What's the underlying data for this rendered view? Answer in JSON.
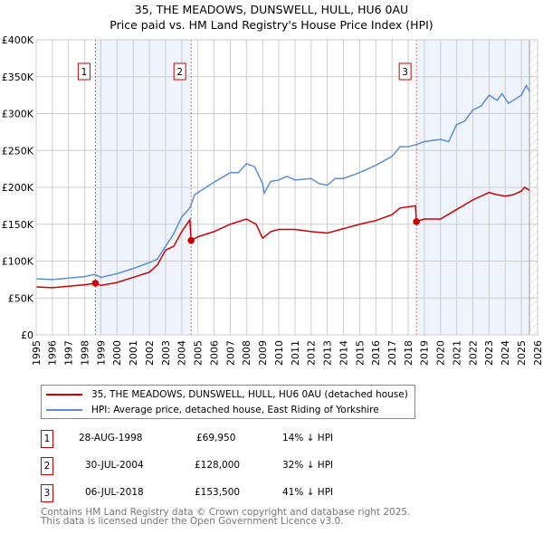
{
  "title": "35, THE MEADOWS, DUNSWELL, HULL, HU6 0AU",
  "subtitle": "Price paid vs. HM Land Registry's House Price Index (HPI)",
  "chart_data": {
    "type": "line",
    "ylim": [
      0,
      400000
    ],
    "xlim": [
      1995,
      2026
    ],
    "yticks": [
      {
        "v": 0,
        "l": "£0"
      },
      {
        "v": 50000,
        "l": "£50K"
      },
      {
        "v": 100000,
        "l": "£100K"
      },
      {
        "v": 150000,
        "l": "£150K"
      },
      {
        "v": 200000,
        "l": "£200K"
      },
      {
        "v": 250000,
        "l": "£250K"
      },
      {
        "v": 300000,
        "l": "£300K"
      },
      {
        "v": 350000,
        "l": "£350K"
      },
      {
        "v": 400000,
        "l": "£400K"
      }
    ],
    "xticks": [
      "1995",
      "1996",
      "1997",
      "1998",
      "1999",
      "2000",
      "2001",
      "2002",
      "2003",
      "2004",
      "2005",
      "2006",
      "2007",
      "2008",
      "2009",
      "2010",
      "2011",
      "2012",
      "2013",
      "2014",
      "2015",
      "2016",
      "2017",
      "2018",
      "2019",
      "2020",
      "2021",
      "2022",
      "2023",
      "2024",
      "2025",
      "2026"
    ],
    "shaded": [
      [
        1998.66,
        2004.58
      ],
      [
        2018.51,
        2025.5
      ]
    ],
    "forecast_start": 2025.5,
    "series": [
      {
        "name": "35, THE MEADOWS, DUNSWELL, HULL, HU6 0AU (detached house)",
        "color": "#cc0000",
        "x": [
          1995,
          1996,
          1997,
          1998,
          1998.66,
          1999,
          2000,
          2001,
          2002,
          2002.5,
          2003,
          2003.5,
          2004,
          2004.5,
          2004.58,
          2005,
          2006,
          2007,
          2008,
          2008.6,
          2009,
          2009.5,
          2010,
          2011,
          2012,
          2013,
          2014,
          2015,
          2016,
          2017,
          2017.5,
          2018.45,
          2018.51,
          2019,
          2020,
          2021,
          2022,
          2023,
          2023.5,
          2024,
          2024.5,
          2025,
          2025.2,
          2025.5
        ],
        "y": [
          65000,
          64000,
          66000,
          68000,
          69950,
          67000,
          71000,
          78000,
          85000,
          95000,
          115000,
          120000,
          140000,
          156000,
          128000,
          133000,
          140000,
          150000,
          157000,
          150000,
          131000,
          140000,
          143000,
          143000,
          140000,
          138000,
          144000,
          150000,
          155000,
          163000,
          172000,
          175000,
          153500,
          157000,
          157000,
          170000,
          183000,
          193000,
          190000,
          188000,
          190000,
          195000,
          200000,
          196000
        ]
      },
      {
        "name": "HPI: Average price, detached house, East Riding of Yorkshire",
        "color": "#5b8fd4",
        "x": [
          1995,
          1996,
          1997,
          1998,
          1998.6,
          1999,
          2000,
          2001,
          2002,
          2002.5,
          2003,
          2003.5,
          2004,
          2004.5,
          2004.8,
          2005.5,
          2006,
          2007,
          2007.5,
          2008,
          2008.5,
          2009,
          2009.1,
          2009.5,
          2010,
          2010.5,
          2011,
          2012,
          2012.5,
          2013,
          2013.5,
          2014,
          2015,
          2016,
          2017,
          2017.5,
          2018,
          2018.5,
          2019,
          2020,
          2020.5,
          2021,
          2021.5,
          2022,
          2022.5,
          2023,
          2023.5,
          2023.8,
          2024.2,
          2024.5,
          2025,
          2025.3,
          2025.5
        ],
        "y": [
          76000,
          75000,
          77000,
          79000,
          82000,
          78000,
          83000,
          90000,
          98000,
          103000,
          120000,
          137000,
          160000,
          172000,
          190000,
          200000,
          207000,
          220000,
          220000,
          232000,
          228000,
          205000,
          192000,
          208000,
          210000,
          215000,
          210000,
          212000,
          205000,
          203000,
          212000,
          212000,
          220000,
          230000,
          242000,
          255000,
          255000,
          258000,
          262000,
          265000,
          262000,
          285000,
          290000,
          305000,
          310000,
          325000,
          318000,
          327000,
          314000,
          318000,
          325000,
          338000,
          330000
        ]
      }
    ],
    "sales": [
      {
        "n": "1",
        "x": 1998.66,
        "date": "28-AUG-1998",
        "price": 69950,
        "price_label": "£69,950",
        "hpi": "14% ↓ HPI"
      },
      {
        "n": "2",
        "x": 2004.58,
        "date": "30-JUL-2004",
        "price": 128000,
        "price_label": "£128,000",
        "hpi": "32% ↓ HPI"
      },
      {
        "n": "3",
        "x": 2018.51,
        "date": "06-JUL-2018",
        "price": 153500,
        "price_label": "£153,500",
        "hpi": "41% ↓ HPI"
      }
    ]
  },
  "footer": [
    "Contains HM Land Registry data © Crown copyright and database right 2025.",
    "This data is licensed under the Open Government Licence v3.0."
  ]
}
